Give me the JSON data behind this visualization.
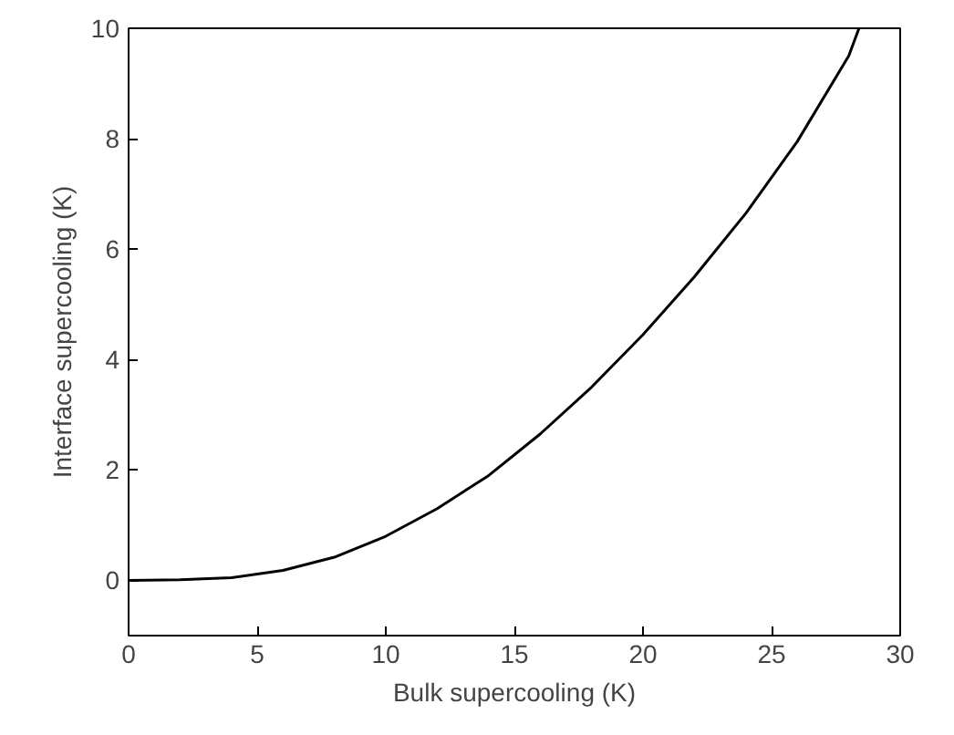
{
  "chart_data": {
    "type": "line",
    "xlabel": "Bulk supercooling (K)",
    "ylabel": "Interface supercooling (K)",
    "x": [
      0,
      2,
      4,
      6,
      8,
      10,
      12,
      14,
      16,
      18,
      20,
      22,
      24,
      26,
      28,
      28.4
    ],
    "series": [
      {
        "color": "#000000",
        "values": [
          0,
          0.01,
          0.05,
          0.18,
          0.42,
          0.8,
          1.3,
          1.9,
          2.65,
          3.5,
          4.45,
          5.5,
          6.65,
          7.95,
          9.5,
          10
        ]
      }
    ],
    "xlim": [
      0,
      30
    ],
    "xticks": [
      0,
      5,
      10,
      15,
      20,
      25,
      30
    ],
    "ylim": [
      -1,
      10
    ],
    "yticks": [
      0,
      2,
      4,
      6,
      8,
      10
    ],
    "grid": false,
    "marker": "none",
    "line_style": "solid"
  }
}
